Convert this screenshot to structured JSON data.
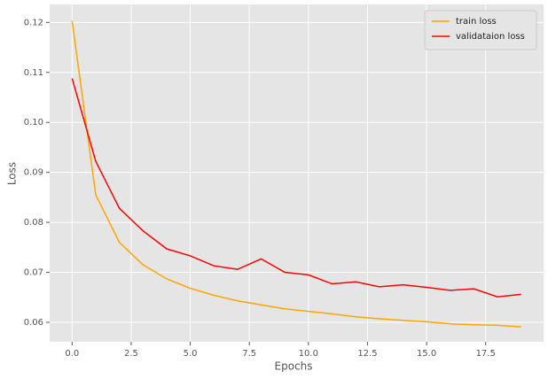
{
  "chart_data": {
    "type": "line",
    "xlabel": "Epochs",
    "ylabel": "Loss",
    "x": [
      0,
      1,
      2,
      3,
      4,
      5,
      6,
      7,
      8,
      9,
      10,
      11,
      12,
      13,
      14,
      15,
      16,
      17,
      18,
      19
    ],
    "series": [
      {
        "name": "train loss",
        "color": "#ffa500",
        "values": [
          0.1203,
          0.0855,
          0.076,
          0.0715,
          0.0687,
          0.0668,
          0.0654,
          0.0643,
          0.0635,
          0.0627,
          0.0622,
          0.0617,
          0.0611,
          0.0607,
          0.0604,
          0.0601,
          0.0597,
          0.0595,
          0.0594,
          0.0591
        ]
      },
      {
        "name": "validataion loss",
        "color": "#ff0000",
        "values": [
          0.1088,
          0.0922,
          0.0828,
          0.0783,
          0.0747,
          0.0733,
          0.0713,
          0.0706,
          0.0727,
          0.07,
          0.0695,
          0.0677,
          0.0681,
          0.0671,
          0.0675,
          0.067,
          0.0664,
          0.0667,
          0.0651,
          0.0656
        ]
      }
    ],
    "xlim": [
      -0.95,
      19.95
    ],
    "xticks": [
      {
        "value": 0,
        "label": "0.0"
      },
      2.5,
      {
        "value": 5,
        "label": "5.0"
      },
      7.5,
      {
        "value": 10,
        "label": "10.0"
      },
      12.5,
      {
        "value": 15,
        "label": "15.0"
      },
      17.5
    ],
    "ylim": [
      0.0561,
      0.1236
    ],
    "yticks": [
      0.06,
      0.07,
      0.08,
      0.09,
      {
        "value": 0.1,
        "label": "0.10"
      },
      0.11,
      0.12
    ],
    "grid": true,
    "legend": "upper right"
  }
}
